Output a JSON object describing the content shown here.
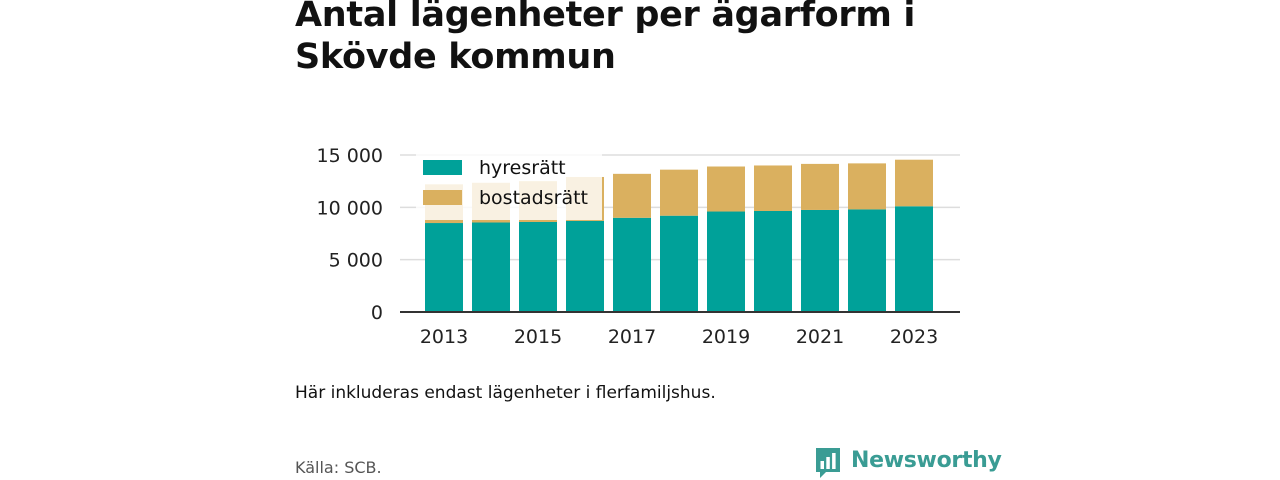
{
  "title": "Antal lägenheter per ägarform i Skövde kommun",
  "note": "Här inkluderas endast lägenheter i flerfamiljshus.",
  "source": "Källa: SCB.",
  "brand": {
    "name": "Newsworthy",
    "icon": "bar-chart-speech-bubble-icon"
  },
  "colors": {
    "hyresratt": "#00a199",
    "bostadsratt": "#dab05f",
    "grid": "#dddddd",
    "axis": "#333333",
    "brand": "#3a9c94"
  },
  "chart_data": {
    "type": "bar",
    "stacked": true,
    "title": "Antal lägenheter per ägarform i Skövde kommun",
    "xlabel": "",
    "ylabel": "",
    "ylim": [
      0,
      15000
    ],
    "yticks": [
      0,
      5000,
      10000,
      15000
    ],
    "ytick_labels": [
      "0",
      "5 000",
      "10 000",
      "15 000"
    ],
    "categories": [
      "2013",
      "2014",
      "2015",
      "2016",
      "2017",
      "2018",
      "2019",
      "2020",
      "2021",
      "2022",
      "2023"
    ],
    "xtick_labels": [
      "2013",
      "",
      "2015",
      "",
      "2017",
      "",
      "2019",
      "",
      "2021",
      "",
      "2023"
    ],
    "grid": true,
    "legend": "top-left",
    "series": [
      {
        "name": "hyresrätt",
        "color": "#00a199",
        "values": [
          8500,
          8550,
          8600,
          8700,
          9000,
          9200,
          9600,
          9650,
          9750,
          9800,
          10100
        ]
      },
      {
        "name": "bostadsrätt",
        "color": "#dab05f",
        "values": [
          3700,
          3800,
          3900,
          4200,
          4200,
          4400,
          4300,
          4350,
          4400,
          4400,
          4450
        ]
      }
    ]
  }
}
